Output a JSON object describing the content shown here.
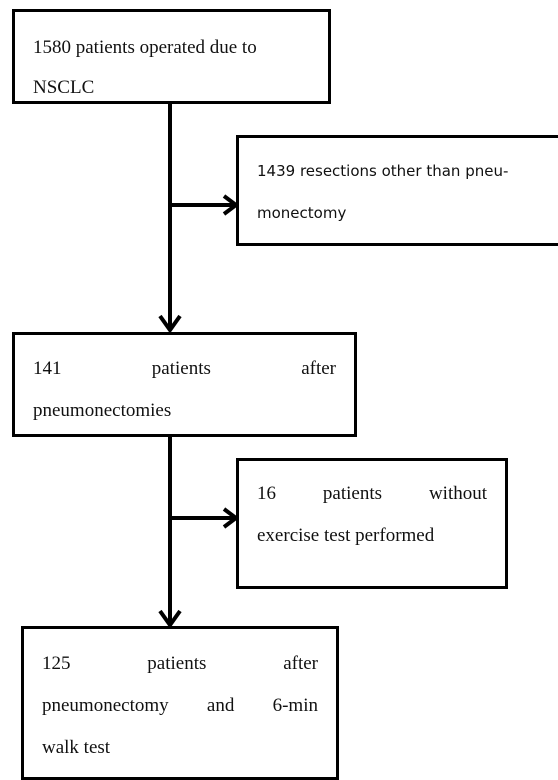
{
  "nodes": [
    {
      "lines": [
        "1580 patients operated due to",
        "NSCLC"
      ]
    },
    {
      "lines": [
        "1439 resections other than pneu-",
        "monectomy"
      ]
    },
    {
      "lines": [
        "141 patients after",
        "pneumonectomies"
      ]
    },
    {
      "lines": [
        "16 patients without",
        "exercise test performed"
      ]
    },
    {
      "lines": [
        "125 patients after",
        "pneumonectomy and 6-min",
        "walk test"
      ]
    }
  ]
}
